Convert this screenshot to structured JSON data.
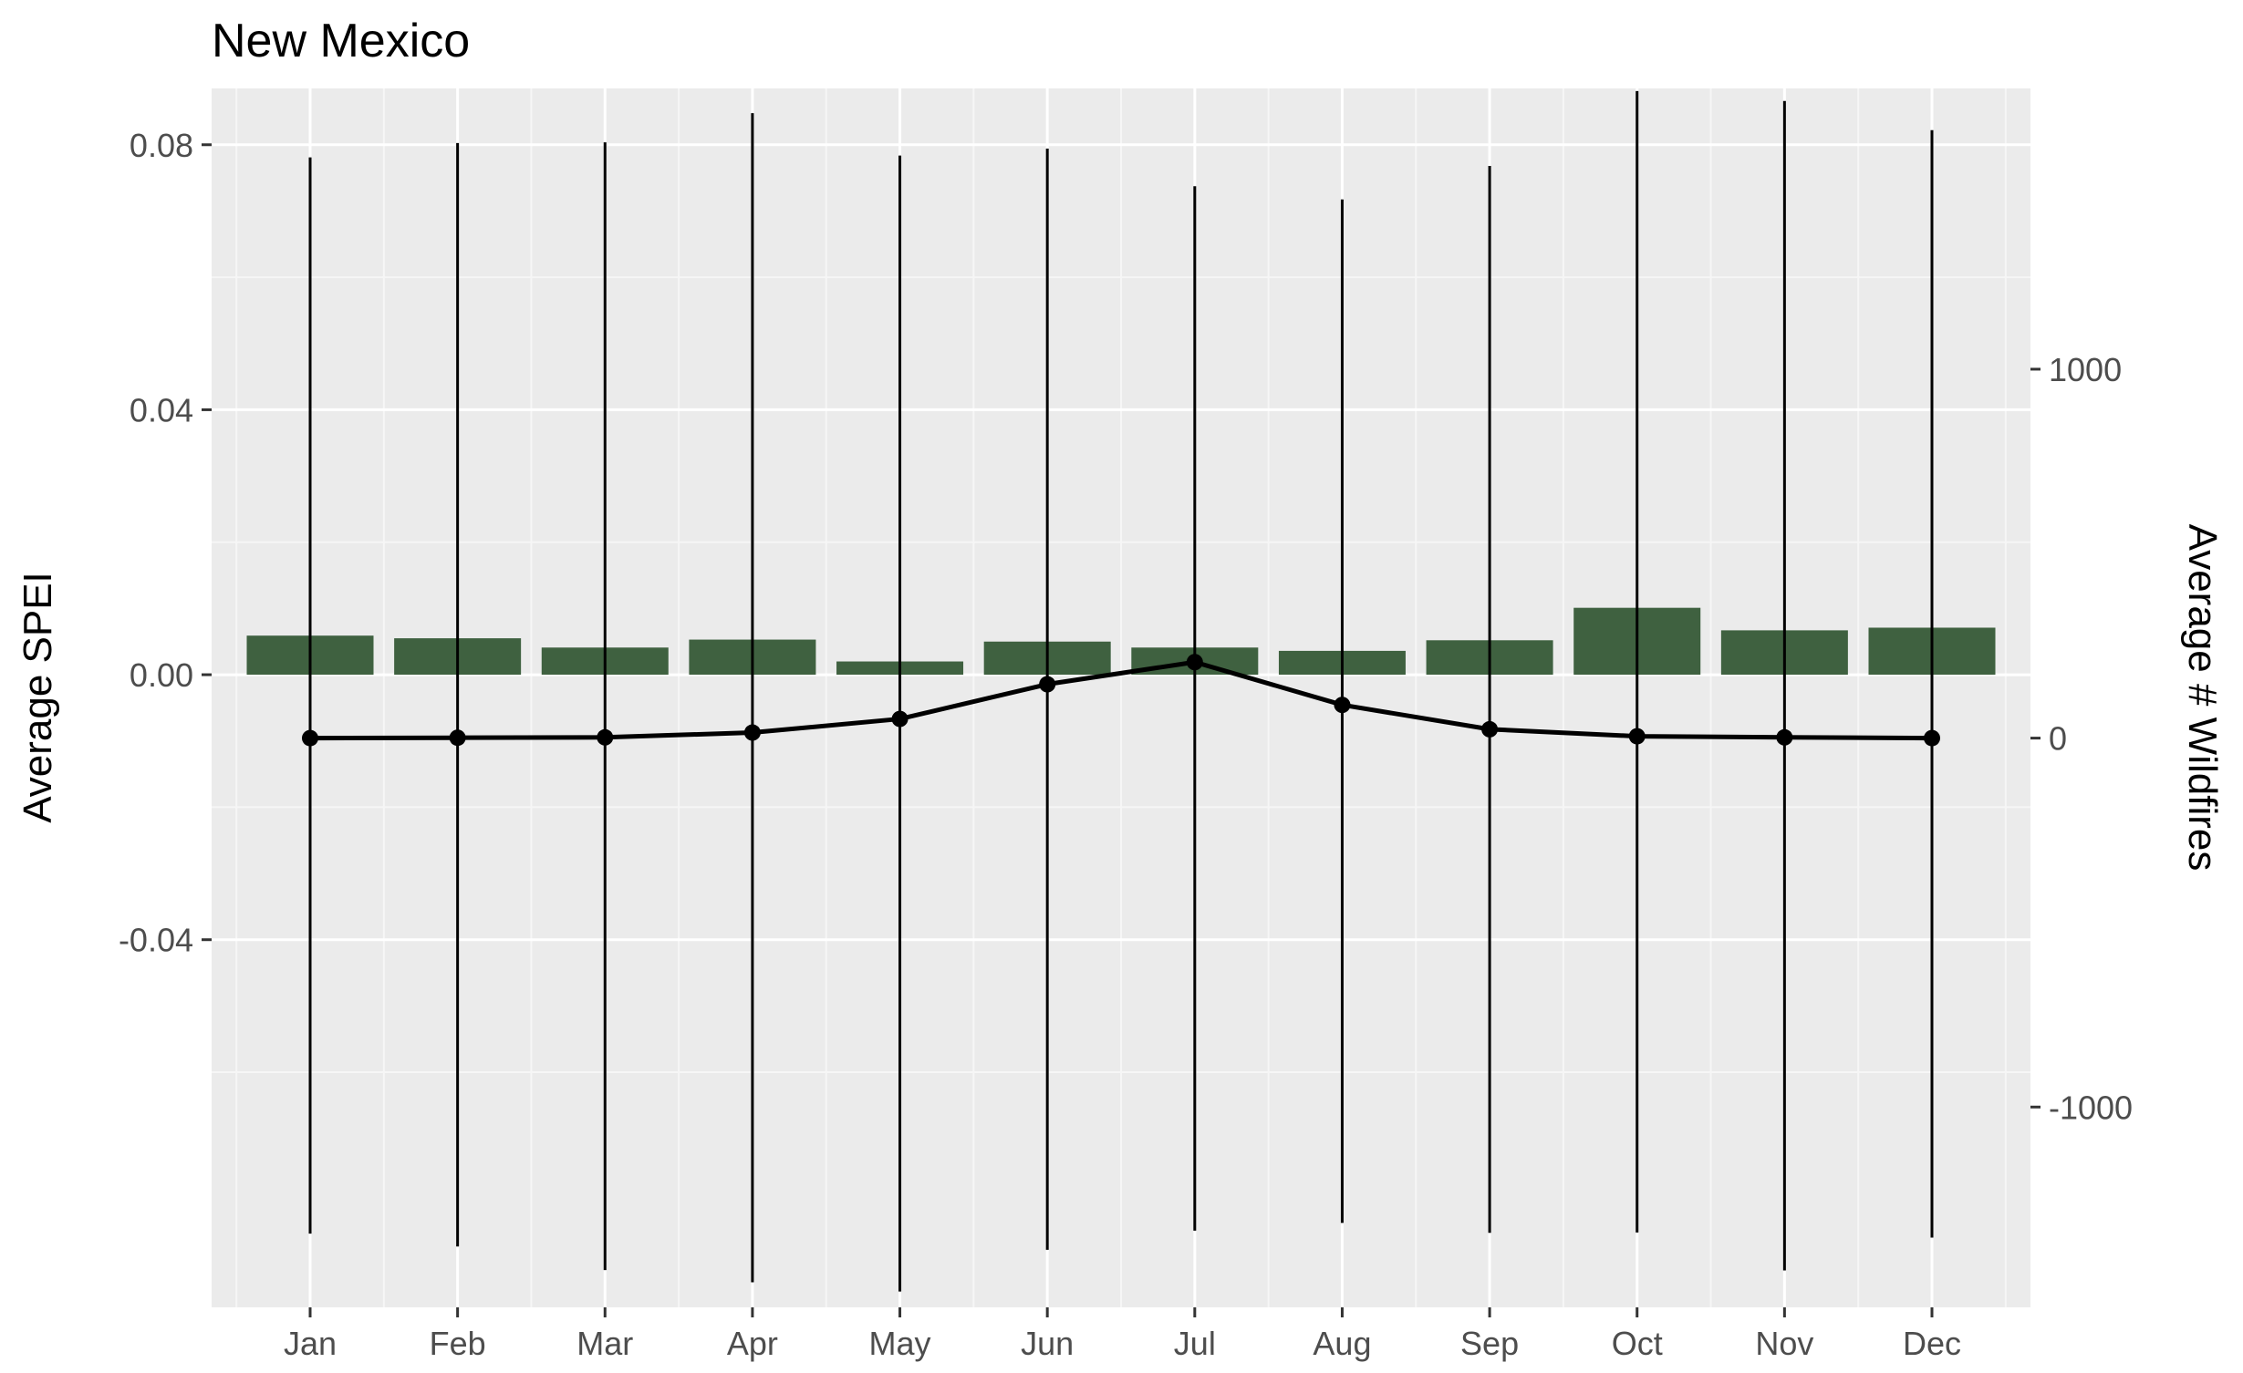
{
  "chart_data": {
    "type": "bar",
    "title": "New Mexico",
    "xlabel": "",
    "ylabel": "Average SPEI",
    "y2label": "Average # Wildfires",
    "categories": [
      "Jan",
      "Feb",
      "Mar",
      "Apr",
      "May",
      "Jun",
      "Jul",
      "Aug",
      "Sep",
      "Oct",
      "Nov",
      "Dec"
    ],
    "ylim": [
      -0.0955,
      0.0885
    ],
    "y_ticks": [
      -0.04,
      0.0,
      0.04,
      0.08
    ],
    "y_tick_labels": [
      "-0.04",
      "0.00",
      "0.04",
      "0.08"
    ],
    "y2lim": [
      -1543,
      1761
    ],
    "y2_ticks": [
      -1000,
      0,
      1000
    ],
    "y2_tick_labels": [
      "-1000",
      "0",
      "1000"
    ],
    "grid": true,
    "series": [
      {
        "name": "Average SPEI",
        "type": "bar",
        "axis": "left",
        "color": "#3f6140",
        "values": [
          0.0059,
          0.0055,
          0.0041,
          0.0053,
          0.002,
          0.005,
          0.0041,
          0.0036,
          0.0052,
          0.0101,
          0.0067,
          0.0071
        ]
      },
      {
        "name": "Average # Wildfires",
        "type": "line",
        "axis": "right",
        "color": "#000000",
        "values": [
          0,
          1,
          2,
          15,
          52,
          146,
          206,
          90,
          24,
          5,
          2,
          0
        ],
        "error_low": [
          -1343,
          -1378,
          -1442,
          -1475,
          -1500,
          -1387,
          -1335,
          -1314,
          -1341,
          -1340,
          -1443,
          -1354
        ],
        "error_high": [
          1574,
          1613,
          1615,
          1694,
          1579,
          1598,
          1496,
          1460,
          1551,
          1754,
          1727,
          1648
        ]
      }
    ]
  }
}
